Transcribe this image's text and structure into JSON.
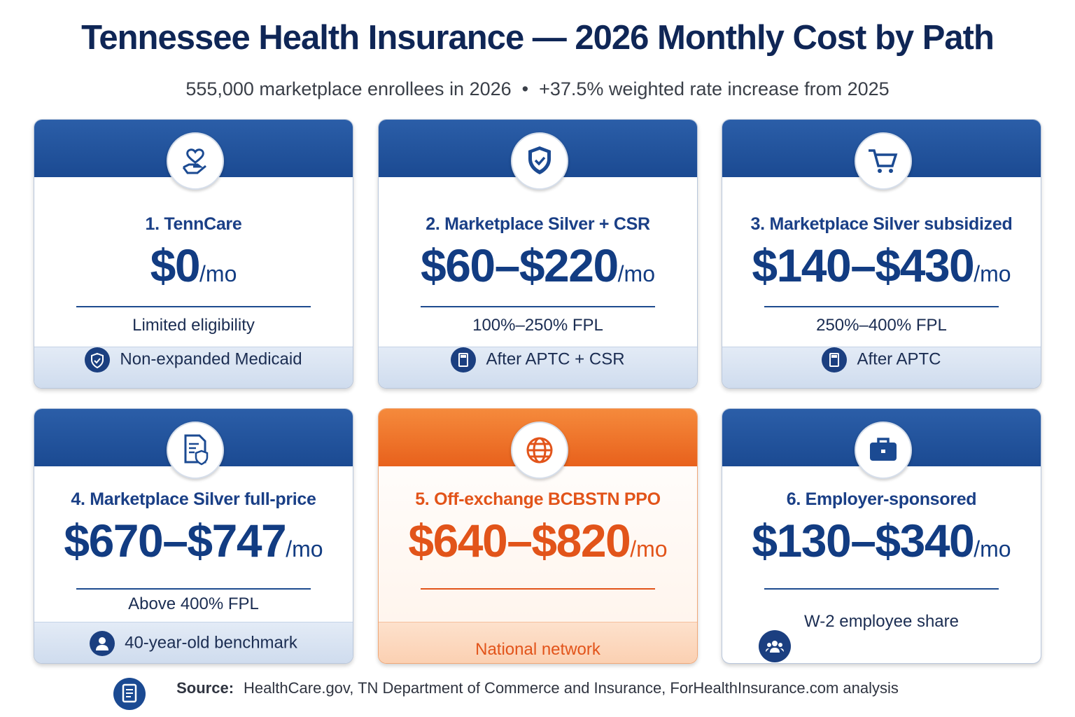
{
  "header": {
    "title": "Tennessee Health Insurance — 2026 Monthly Cost by Path",
    "subtitle": "555,000 marketplace enrollees in 2026  •  +37.5% weighted rate increase from 2025"
  },
  "cards": [
    {
      "title": "1. TennCare",
      "price": "$0",
      "unit": "/mo",
      "detail": "Limited eligibility",
      "footer": "Non-expanded Medicaid",
      "highlight": false
    },
    {
      "title": "2. Marketplace Silver + CSR",
      "price": "$60–$220",
      "unit": "/mo",
      "detail": "100%–250% FPL",
      "footer": "After APTC + CSR",
      "highlight": false
    },
    {
      "title": "3. Marketplace Silver subsidized",
      "price": "$140–$430",
      "unit": "/mo",
      "detail": "250%–400% FPL",
      "footer": "After APTC",
      "highlight": false
    },
    {
      "title": "4. Marketplace Silver full-price",
      "price": "$670–$747",
      "unit": "/mo",
      "detail": "Above 400% FPL",
      "footer": "40-year-old benchmark",
      "highlight": false
    },
    {
      "title": "5. Off-exchange BCBSTN PPO",
      "price": "$640–$820",
      "unit": "/mo",
      "detail": "National network",
      "highlight": true
    },
    {
      "title": "6. Employer-sponsored",
      "price": "$130–$340",
      "unit": "/mo",
      "detail": "W-2 employee share",
      "highlight": false
    }
  ],
  "source": {
    "label": "Source:",
    "text": "HealthCare.gov, TN Department of Commerce and Insurance, ForHealthInsurance.com analysis"
  }
}
